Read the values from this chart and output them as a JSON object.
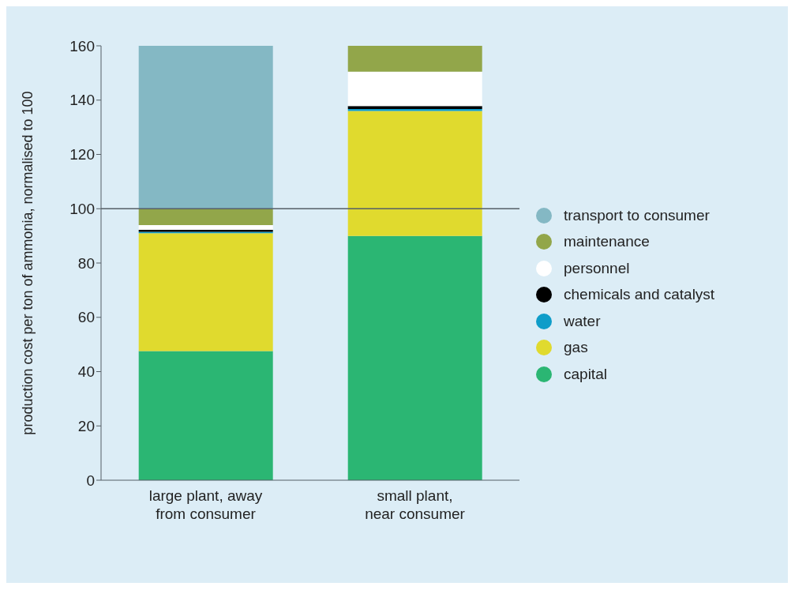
{
  "chart_data": {
    "type": "bar",
    "stacked": true,
    "ylabel": "production cost per ton of ammonia, normalised to 100",
    "categories": [
      "large plant, away from consumer",
      "small plant, near consumer"
    ],
    "series": [
      {
        "name": "capital",
        "color": "#2bb673",
        "values": [
          47.6,
          90
        ]
      },
      {
        "name": "gas",
        "color": "#e0da2e",
        "values": [
          43.4,
          46
        ]
      },
      {
        "name": "water",
        "color": "#0f9dc9",
        "values": [
          0.5,
          0.7
        ]
      },
      {
        "name": "chemicals and catalyst",
        "color": "#000000",
        "values": [
          0.7,
          1.1
        ]
      },
      {
        "name": "personnel",
        "color": "#ffffff",
        "values": [
          1.8,
          12.7
        ]
      },
      {
        "name": "maintenance",
        "color": "#92a64a",
        "values": [
          6,
          9.5
        ]
      },
      {
        "name": "transport to consumer",
        "color": "#84b8c4",
        "values": [
          60,
          0
        ]
      }
    ],
    "ylim": [
      0,
      160
    ],
    "yticks": [
      0,
      20,
      40,
      60,
      80,
      100,
      120,
      140,
      160
    ],
    "ref_lines": [
      {
        "axis": "y",
        "value": 100,
        "color": "#555f66"
      }
    ],
    "grid": false,
    "legend": "right"
  }
}
